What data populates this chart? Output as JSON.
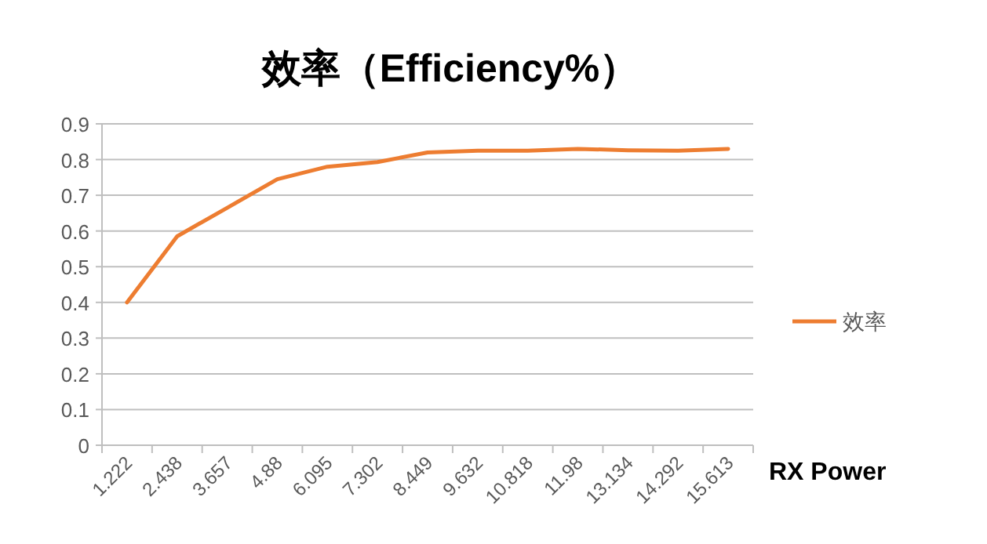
{
  "chart_data": {
    "type": "line",
    "title": "效率（Efficiency%）",
    "xlabel": "RX Power",
    "categories": [
      "1.222",
      "2.438",
      "3.657",
      "4.88",
      "6.095",
      "7.302",
      "8.449",
      "9.632",
      "10.818",
      "11.98",
      "13.134",
      "14.292",
      "15.613"
    ],
    "series": [
      {
        "name": "效率",
        "color": "#ed7d31",
        "values": [
          0.4,
          0.585,
          0.665,
          0.745,
          0.78,
          0.793,
          0.82,
          0.825,
          0.825,
          0.83,
          0.826,
          0.825,
          0.83
        ]
      }
    ],
    "ylim": [
      0,
      0.9
    ],
    "yticks": [
      0,
      0.1,
      0.2,
      0.3,
      0.4,
      0.5,
      0.6,
      0.7,
      0.8,
      0.9
    ],
    "grid": "y",
    "legend": "right",
    "marker": "none",
    "line_style": "solid"
  }
}
